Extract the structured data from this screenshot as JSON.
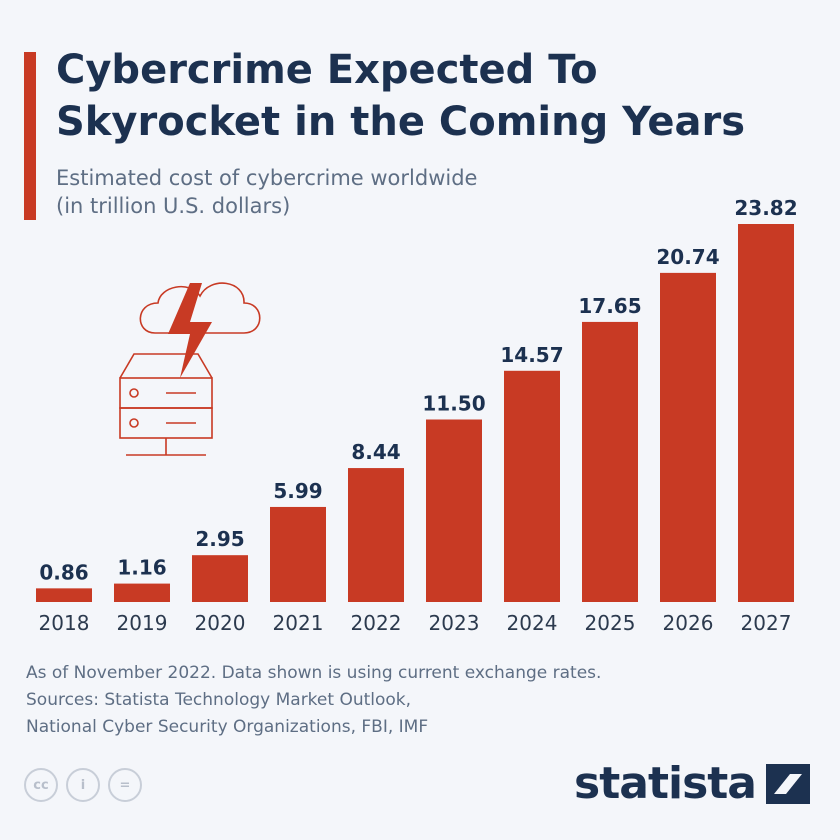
{
  "header": {
    "title": "Cybercrime Expected To Skyrocket in the Coming Years",
    "subtitle_line1": "Estimated cost of cybercrime worldwide",
    "subtitle_line2": "(in trillion U.S. dollars)"
  },
  "colors": {
    "bar": "#c83a24",
    "title": "#1c3150",
    "text": "#5e6e84",
    "background": "#f4f6fa"
  },
  "illustration": {
    "icon": "cloud-server-lightning-icon"
  },
  "chart_data": {
    "type": "bar",
    "title": "Cybercrime Expected To Skyrocket in the Coming Years",
    "subtitle": "Estimated cost of cybercrime worldwide (in trillion U.S. dollars)",
    "categories": [
      "2018",
      "2019",
      "2020",
      "2021",
      "2022",
      "2023",
      "2024",
      "2025",
      "2026",
      "2027"
    ],
    "values": [
      0.86,
      1.16,
      2.95,
      5.99,
      8.44,
      11.5,
      14.57,
      17.65,
      20.74,
      23.82
    ],
    "value_labels": [
      "0.86",
      "1.16",
      "2.95",
      "5.99",
      "8.44",
      "11.50",
      "14.57",
      "17.65",
      "20.74",
      "23.82"
    ],
    "ylim": [
      0,
      23.82
    ],
    "grid": false,
    "legend": "none"
  },
  "footer": {
    "note": "As of November 2022. Data shown is using current exchange rates.",
    "sources_line1": "Sources: Statista Technology Market Outlook,",
    "sources_line2": "National Cyber Security Organizations, FBI, IMF"
  },
  "license_icons": [
    {
      "name": "cc-icon",
      "glyph": "cc"
    },
    {
      "name": "attribution-icon",
      "glyph": "i"
    },
    {
      "name": "no-derivatives-icon",
      "glyph": "="
    }
  ],
  "brand": {
    "name": "statista"
  }
}
